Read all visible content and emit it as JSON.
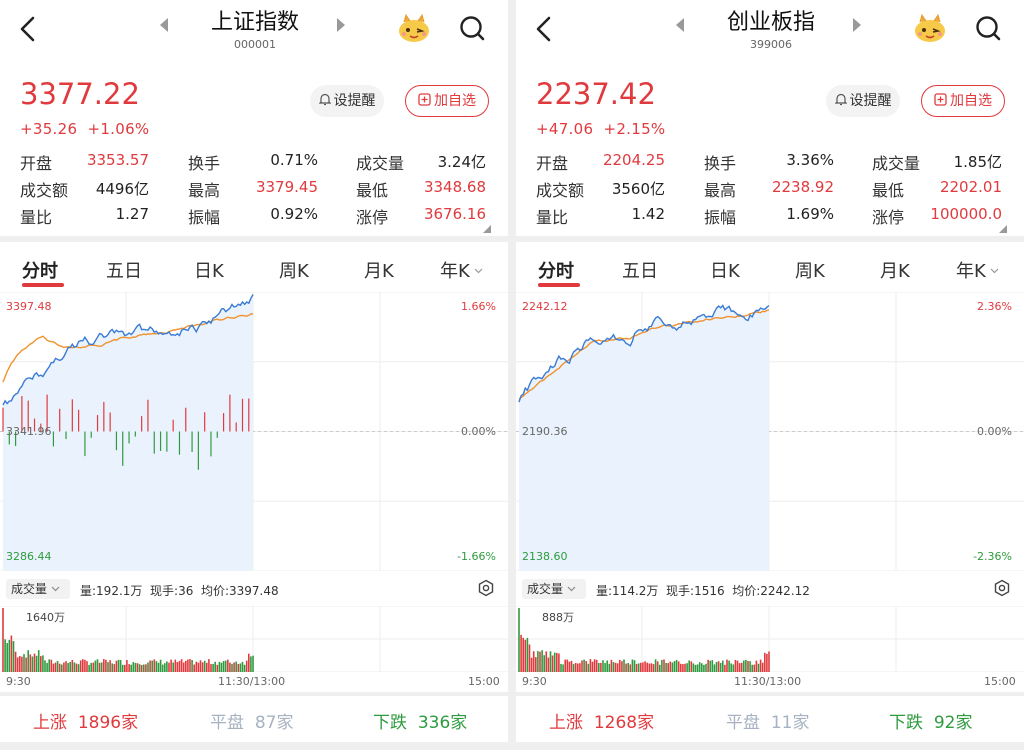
{
  "panels": [
    {
      "id": "A",
      "title": "上证指数",
      "code": "000001",
      "price": "3377.22",
      "change": "+35.26",
      "change_pct": "+1.06%",
      "buttons": {
        "remind": "设提醒",
        "add": "加自选"
      },
      "stats": [
        {
          "label": "开盘",
          "value": "3353.57",
          "color": "red"
        },
        {
          "label": "换手",
          "value": "0.71%",
          "color": "dark"
        },
        {
          "label": "成交量",
          "value": "3.24亿",
          "color": "dark"
        },
        {
          "label": "成交额",
          "value": "4496亿",
          "color": "dark"
        },
        {
          "label": "最高",
          "value": "3379.45",
          "color": "red"
        },
        {
          "label": "最低",
          "value": "3348.68",
          "color": "red"
        },
        {
          "label": "量比",
          "value": "1.27",
          "color": "dark"
        },
        {
          "label": "振幅",
          "value": "0.92%",
          "color": "dark"
        },
        {
          "label": "涨停",
          "value": "3676.16",
          "color": "red"
        }
      ],
      "tabs": [
        "分时",
        "五日",
        "日K",
        "周K",
        "月K",
        "年K"
      ],
      "chart": {
        "top_price": "3397.48",
        "mid_price": "3341.96",
        "bottom_price": "3286.44",
        "top_pct": "1.66%",
        "mid_pct": "0.00%",
        "bottom_pct": "-1.66%"
      },
      "volume": {
        "selector": "成交量",
        "info": "量:192.1万  现手:36  均价:3397.48",
        "max_label": "1640万",
        "time_start": "9:30",
        "time_mid": "11:30/13:00",
        "time_end": "15:00"
      },
      "breadth": {
        "up_label": "上涨",
        "up_count": "1896家",
        "flat_label": "平盘",
        "flat_count": "87家",
        "down_label": "下跌",
        "down_count": "336家"
      }
    },
    {
      "id": "B",
      "title": "创业板指",
      "code": "399006",
      "price": "2237.42",
      "change": "+47.06",
      "change_pct": "+2.15%",
      "buttons": {
        "remind": "设提醒",
        "add": "加自选"
      },
      "stats": [
        {
          "label": "开盘",
          "value": "2204.25",
          "color": "red"
        },
        {
          "label": "换手",
          "value": "3.36%",
          "color": "dark"
        },
        {
          "label": "成交量",
          "value": "1.85亿",
          "color": "dark"
        },
        {
          "label": "成交额",
          "value": "3560亿",
          "color": "dark"
        },
        {
          "label": "最高",
          "value": "2238.92",
          "color": "red"
        },
        {
          "label": "最低",
          "value": "2202.01",
          "color": "red"
        },
        {
          "label": "量比",
          "value": "1.42",
          "color": "dark"
        },
        {
          "label": "振幅",
          "value": "1.69%",
          "color": "dark"
        },
        {
          "label": "涨停",
          "value": "100000.0",
          "color": "red"
        }
      ],
      "tabs": [
        "分时",
        "五日",
        "日K",
        "周K",
        "月K",
        "年K"
      ],
      "chart": {
        "top_price": "2242.12",
        "mid_price": "2190.36",
        "bottom_price": "2138.60",
        "top_pct": "2.36%",
        "mid_pct": "0.00%",
        "bottom_pct": "-2.36%"
      },
      "volume": {
        "selector": "成交量",
        "info": "量:114.2万  现手:1516  均价:2242.12",
        "max_label": "888万",
        "time_start": "9:30",
        "time_mid": "11:30/13:00",
        "time_end": "15:00"
      },
      "breadth": {
        "up_label": "上涨",
        "up_count": "1268家",
        "flat_label": "平盘",
        "flat_count": "11家",
        "down_label": "下跌",
        "down_count": "92家"
      }
    }
  ],
  "colors": {
    "up": "#e03a3e",
    "down": "#2e9b3e",
    "price_line": "#3a7bd5",
    "avg_line": "#f0922e",
    "flat": "#a7b3c2"
  },
  "icons": [
    "back-arrow-icon",
    "prev-triangle-icon",
    "next-triangle-icon",
    "mascot-icon",
    "search-icon",
    "bell-icon",
    "plus-box-icon",
    "chevron-down-icon",
    "settings-icon"
  ]
}
